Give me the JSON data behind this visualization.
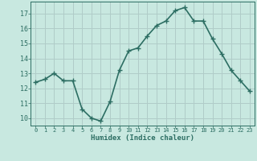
{
  "x": [
    0,
    1,
    2,
    3,
    4,
    5,
    6,
    7,
    8,
    9,
    10,
    11,
    12,
    13,
    14,
    15,
    16,
    17,
    18,
    19,
    20,
    21,
    22,
    23
  ],
  "y": [
    12.4,
    12.6,
    13.0,
    12.5,
    12.5,
    10.6,
    10.0,
    9.8,
    11.1,
    13.2,
    14.5,
    14.7,
    15.5,
    16.2,
    16.5,
    17.2,
    17.4,
    16.5,
    16.5,
    15.3,
    14.3,
    13.2,
    12.5,
    11.8
  ],
  "xlabel": "Humidex (Indice chaleur)",
  "ylim": [
    9.5,
    17.8
  ],
  "xlim": [
    -0.5,
    23.5
  ],
  "yticks": [
    10,
    11,
    12,
    13,
    14,
    15,
    16,
    17
  ],
  "xticks": [
    0,
    1,
    2,
    3,
    4,
    5,
    6,
    7,
    8,
    9,
    10,
    11,
    12,
    13,
    14,
    15,
    16,
    17,
    18,
    19,
    20,
    21,
    22,
    23
  ],
  "line_color": "#2d6e63",
  "marker": "+",
  "bg_color": "#c8e8e0",
  "grid_color": "#b0ccc8",
  "tick_label_color": "#2d6e63",
  "xlabel_color": "#2d6e63",
  "line_width": 1.2,
  "marker_size": 4
}
